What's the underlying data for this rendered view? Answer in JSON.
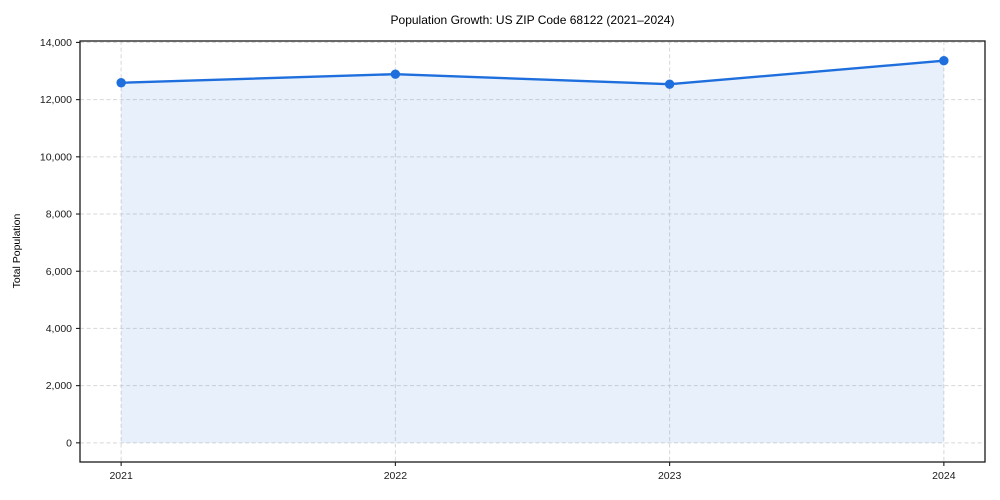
{
  "chart_data": {
    "type": "line",
    "title": "Population Growth: US ZIP Code 68122 (2021–2024)",
    "xlabel": "",
    "ylabel": "Total Population",
    "x": [
      2021,
      2022,
      2023,
      2024
    ],
    "x_tick_labels": [
      "2021",
      "2022",
      "2023",
      "2024"
    ],
    "series": [
      {
        "name": "Total Population",
        "values": [
          12590,
          12890,
          12540,
          13360
        ]
      }
    ],
    "y_ticks": [
      0,
      2000,
      4000,
      6000,
      8000,
      10000,
      12000,
      14000
    ],
    "y_tick_labels": [
      "0",
      "2,000",
      "4,000",
      "6,000",
      "8,000",
      "10,000",
      "12,000",
      "14,000"
    ],
    "xlim": [
      2020.85,
      2024.15
    ],
    "ylim": [
      -670,
      14050
    ],
    "grid": true,
    "grid_style": "dashed",
    "legend": false,
    "area_fill": true,
    "marker": "circle",
    "colors": {
      "line": "#1e6fdd",
      "marker": "#1e6fdd",
      "area": "rgba(30,111,221,0.10)",
      "grid": "#d7d7d7",
      "spine": "#1a1a1a",
      "tick_text": "#1a1a1a",
      "background": "#ffffff"
    }
  }
}
